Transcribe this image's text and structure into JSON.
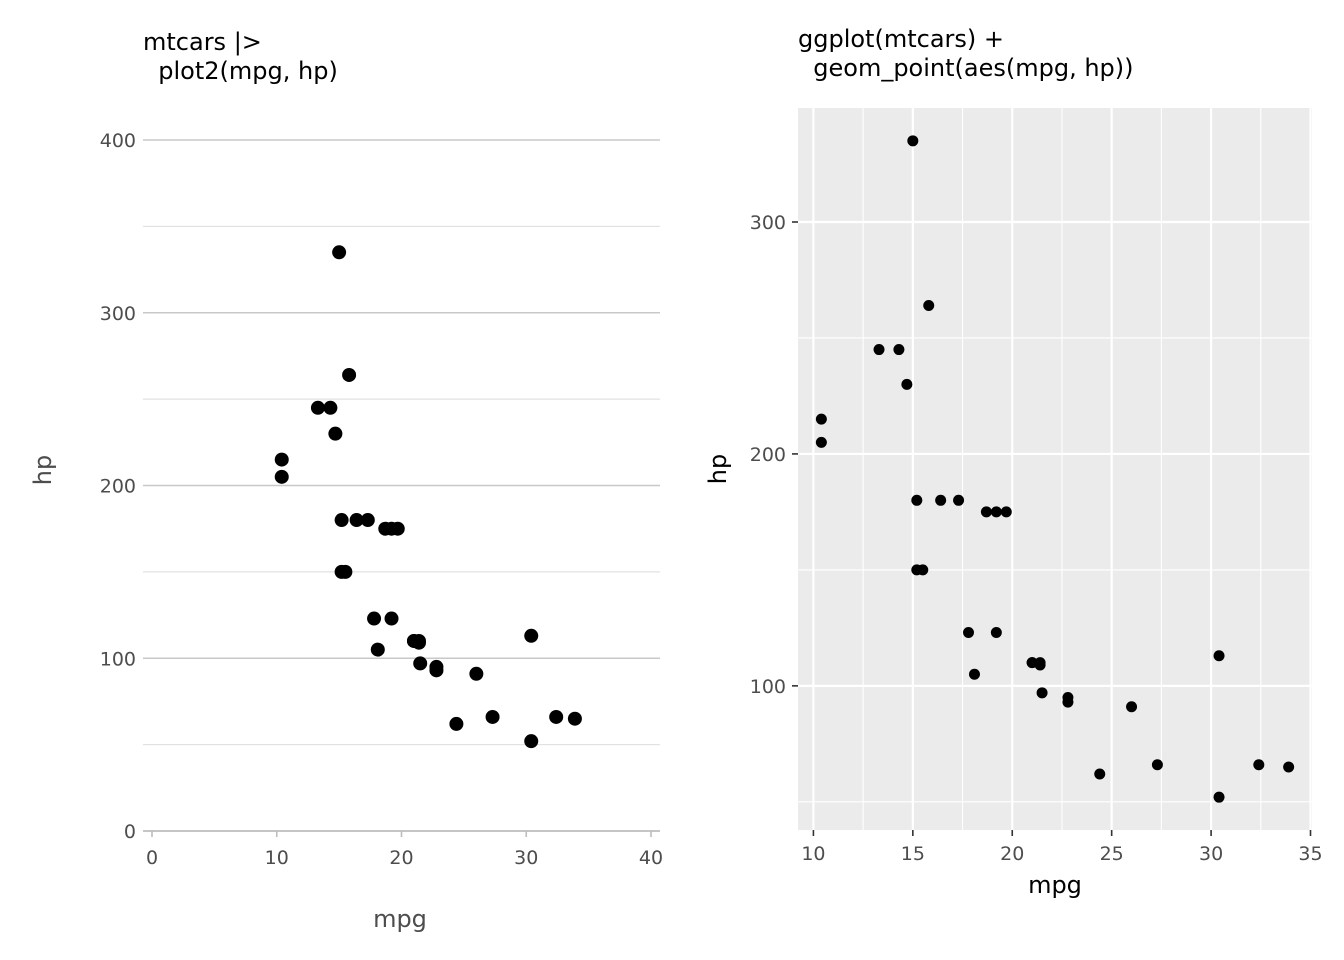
{
  "chart_data": [
    {
      "type": "scatter",
      "title_lines": [
        "mtcars |>",
        "  plot2(mpg, hp)"
      ],
      "xlabel": "mpg",
      "ylabel": "hp",
      "xlim": [
        0,
        40
      ],
      "ylim": [
        0,
        400
      ],
      "xticks": [
        0,
        10,
        20,
        30,
        40
      ],
      "yticks": [
        0,
        100,
        200,
        300,
        400
      ],
      "grid": "horizontal",
      "points": [
        [
          21.0,
          110
        ],
        [
          21.0,
          110
        ],
        [
          22.8,
          93
        ],
        [
          21.4,
          110
        ],
        [
          18.7,
          175
        ],
        [
          18.1,
          105
        ],
        [
          14.3,
          245
        ],
        [
          24.4,
          62
        ],
        [
          22.8,
          95
        ],
        [
          19.2,
          123
        ],
        [
          17.8,
          123
        ],
        [
          16.4,
          180
        ],
        [
          17.3,
          180
        ],
        [
          15.2,
          180
        ],
        [
          10.4,
          205
        ],
        [
          10.4,
          215
        ],
        [
          14.7,
          230
        ],
        [
          32.4,
          66
        ],
        [
          30.4,
          52
        ],
        [
          33.9,
          65
        ],
        [
          21.5,
          97
        ],
        [
          15.5,
          150
        ],
        [
          15.2,
          150
        ],
        [
          13.3,
          245
        ],
        [
          19.2,
          175
        ],
        [
          27.3,
          66
        ],
        [
          26.0,
          91
        ],
        [
          30.4,
          113
        ],
        [
          15.8,
          264
        ],
        [
          19.7,
          175
        ],
        [
          15.0,
          335
        ],
        [
          21.4,
          109
        ]
      ]
    },
    {
      "type": "scatter",
      "title_lines": [
        "ggplot(mtcars) +",
        "  geom_point(aes(mpg, hp))"
      ],
      "xlabel": "mpg",
      "ylabel": "hp",
      "xlim": [
        9.225,
        35.075
      ],
      "ylim": [
        37.85,
        349.15
      ],
      "xticks": [
        10,
        15,
        20,
        25,
        30,
        35
      ],
      "yticks": [
        100,
        200,
        300
      ],
      "grid": "both",
      "panel_background": "#ebebeb",
      "points": [
        [
          21.0,
          110
        ],
        [
          21.0,
          110
        ],
        [
          22.8,
          93
        ],
        [
          21.4,
          110
        ],
        [
          18.7,
          175
        ],
        [
          18.1,
          105
        ],
        [
          14.3,
          245
        ],
        [
          24.4,
          62
        ],
        [
          22.8,
          95
        ],
        [
          19.2,
          123
        ],
        [
          17.8,
          123
        ],
        [
          16.4,
          180
        ],
        [
          17.3,
          180
        ],
        [
          15.2,
          180
        ],
        [
          10.4,
          205
        ],
        [
          10.4,
          215
        ],
        [
          14.7,
          230
        ],
        [
          32.4,
          66
        ],
        [
          30.4,
          52
        ],
        [
          33.9,
          65
        ],
        [
          21.5,
          97
        ],
        [
          15.5,
          150
        ],
        [
          15.2,
          150
        ],
        [
          13.3,
          245
        ],
        [
          19.2,
          175
        ],
        [
          27.3,
          66
        ],
        [
          26.0,
          91
        ],
        [
          30.4,
          113
        ],
        [
          15.8,
          264
        ],
        [
          19.7,
          175
        ],
        [
          15.0,
          335
        ],
        [
          21.4,
          109
        ]
      ]
    }
  ]
}
